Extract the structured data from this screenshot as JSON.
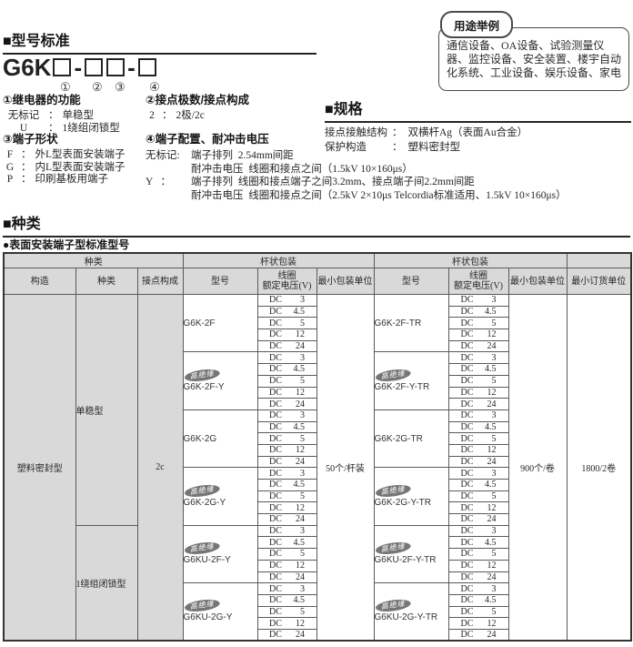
{
  "usage_box": {
    "label": "用途举例",
    "text": "通信设备、OA设备、试验测量仪器、监控设备、安全装置、楼宇自动化系统、工业设备、娱乐设备、家电"
  },
  "model_section": {
    "title": "■型号标准",
    "code_prefix": "G6K",
    "code_sep": "-",
    "callouts": [
      "①",
      "②",
      "③",
      "④"
    ],
    "func": {
      "heading": "①继电器的功能",
      "rows": [
        {
          "k": "无标记",
          "c": "：",
          "v": "单稳型"
        },
        {
          "k": "U",
          "c": "：",
          "v": "1绕组闭锁型"
        }
      ]
    },
    "poles": {
      "heading": "②接点极数/接点构成",
      "rows": [
        {
          "k": "2",
          "c": "：",
          "v": "2极/2c"
        }
      ]
    },
    "terminal": {
      "heading": "③端子形状",
      "rows": [
        {
          "k": "F",
          "c": "：",
          "v": "外L型表面安装端子"
        },
        {
          "k": "G",
          "c": "：",
          "v": "内L型表面安装端子"
        },
        {
          "k": "P",
          "c": "：",
          "v": "印刷基板用端子"
        }
      ]
    },
    "config": {
      "heading": "④端子配置、耐冲击电压",
      "rows": [
        {
          "k": "无标记:",
          "lines": [
            "端子排列  2.54mm间距",
            "耐冲击电压  线圈和接点之间（1.5kV 10×160μs）"
          ]
        },
        {
          "k": "Y   ：",
          "lines": [
            "端子排列  线圈和接点端子之间3.2mm、接点端子间2.2mm间距",
            "耐冲击电压  线圈和接点之间（2.5kV 2×10μs Telcordia标准适用、1.5kV 10×160μs）"
          ]
        }
      ]
    }
  },
  "spec_section": {
    "title": "■规格",
    "rows": [
      {
        "label": "接点接触结构",
        "colon": "：",
        "value": "双横杆Ag（表面Au合金）"
      },
      {
        "label": "保护构造",
        "colon": "：",
        "value": "塑料密封型"
      }
    ]
  },
  "types_section": {
    "title": "■种类",
    "subtitle": "●表面安装端子型标准型号",
    "table": {
      "group_headers": {
        "kind": "种类",
        "pack_left": "杆状包装",
        "pack_right": "杆状包装"
      },
      "col_headers": [
        "构造",
        "种类",
        "接点构成",
        "型号",
        "线圈\n额定电压(V)",
        "最小包装单位",
        "型号",
        "线圈\n额定电压(V)",
        "最小包装单位",
        "最小订货单位"
      ],
      "construction": "塑料密封型",
      "contact": "2c",
      "kinds": [
        {
          "label": "单稳型",
          "blocks": 4
        },
        {
          "label": "1绕组闭锁型",
          "blocks": 2
        }
      ],
      "volt_prefix": "DC",
      "voltages": [
        "3",
        "4.5",
        "5",
        "12",
        "24"
      ],
      "badge_label": "高绝缘",
      "blocks": [
        {
          "model": "G6K-2F",
          "badge": false,
          "model_tr": "G6K-2F-TR",
          "badge_tr": false
        },
        {
          "model": "G6K-2F-Y",
          "badge": true,
          "model_tr": "G6K-2F-Y-TR",
          "badge_tr": true
        },
        {
          "model": "G6K-2G",
          "badge": false,
          "model_tr": "G6K-2G-TR",
          "badge_tr": false
        },
        {
          "model": "G6K-2G-Y",
          "badge": true,
          "model_tr": "G6K-2G-Y-TR",
          "badge_tr": true
        },
        {
          "model": "G6KU-2F-Y",
          "badge": true,
          "model_tr": "G6KU-2F-Y-TR",
          "badge_tr": true
        },
        {
          "model": "G6KU-2G-Y",
          "badge": true,
          "model_tr": "G6KU-2G-Y-TR",
          "badge_tr": true
        }
      ],
      "min_pack_left": "50个/杆装",
      "min_pack_right": "900个/卷",
      "min_order": "1800/2卷"
    }
  },
  "colors": {
    "header_gray": "#d9d9d9",
    "badge_gray": "#767676",
    "table_border": "#5a5a5a",
    "text": "#262626"
  }
}
